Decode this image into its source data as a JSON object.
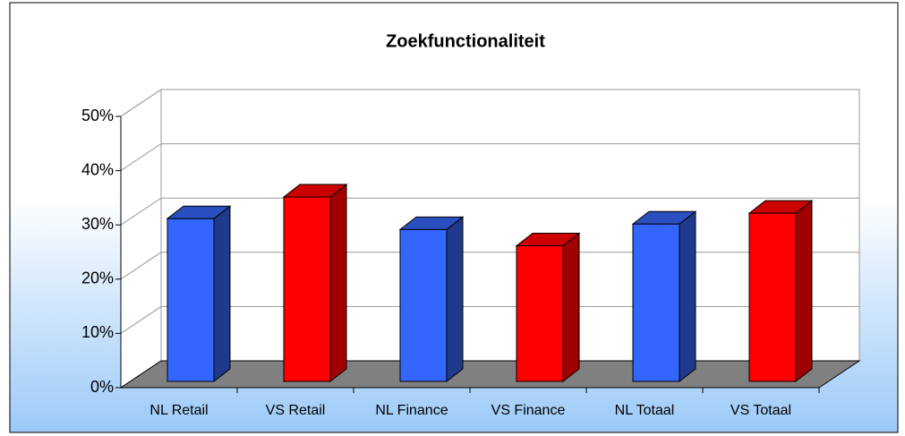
{
  "chart_data": {
    "type": "bar3d",
    "title": "Zoekfunctionaliteit",
    "categories": [
      "NL Retail",
      "VS Retail",
      "NL Finance",
      "VS Finance",
      "NL Totaal",
      "VS Totaal"
    ],
    "values": [
      30,
      34,
      28,
      25,
      29,
      31
    ],
    "colors": [
      "#3366ff",
      "#ff0000",
      "#3366ff",
      "#ff0000",
      "#3366ff",
      "#ff0000"
    ],
    "ylim": [
      0,
      50
    ],
    "yticks": [
      {
        "value": 0,
        "label": "0%"
      },
      {
        "value": 10,
        "label": "10%"
      },
      {
        "value": 20,
        "label": "20%"
      },
      {
        "value": 30,
        "label": "30%"
      },
      {
        "value": 40,
        "label": "40%"
      },
      {
        "value": 50,
        "label": "50%"
      }
    ],
    "grid": true
  }
}
